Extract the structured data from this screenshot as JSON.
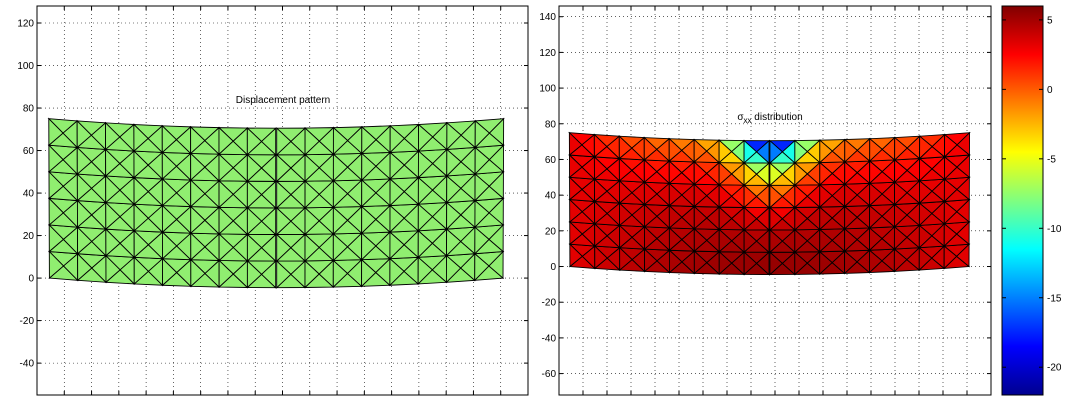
{
  "chart_data": [
    {
      "type": "mesh",
      "title": "Displacement pattern",
      "xlabel": "",
      "ylabel": "",
      "xlim": [
        -20,
        760
      ],
      "ylim": [
        -55,
        128
      ],
      "yticks": [
        -40,
        -20,
        0,
        20,
        40,
        60,
        80,
        100,
        120
      ],
      "xtick_count": 19,
      "grid": true,
      "mesh": {
        "cols": 16,
        "rows": 6,
        "x_range": [
          0,
          720
        ],
        "y_range": [
          0,
          75
        ],
        "deformation_scale": 0.05,
        "split_at_column": 8,
        "fill_color": "#90ee70"
      }
    },
    {
      "type": "mesh",
      "title": "σxx distribution",
      "title_main": "σ",
      "title_sub": "xx",
      "title_rest": " distribution",
      "xlabel": "",
      "ylabel": "",
      "xlim": [
        -20,
        760
      ],
      "ylim": [
        -72,
        146
      ],
      "yticks": [
        -60,
        -40,
        -20,
        0,
        20,
        40,
        60,
        80,
        100,
        120,
        140
      ],
      "xtick_count": 19,
      "grid": true,
      "mesh": {
        "cols": 16,
        "rows": 6,
        "x_range": [
          0,
          720
        ],
        "y_range": [
          0,
          75
        ],
        "deformation_scale": 0.05,
        "split_at_column": 8
      },
      "field": "sigma_xx",
      "field_range": [
        -22,
        6
      ]
    }
  ],
  "colorbar": {
    "range": [
      -22,
      6
    ],
    "ticks": [
      5,
      0,
      -5,
      -10,
      -15,
      -20
    ],
    "colormap": "jet"
  }
}
